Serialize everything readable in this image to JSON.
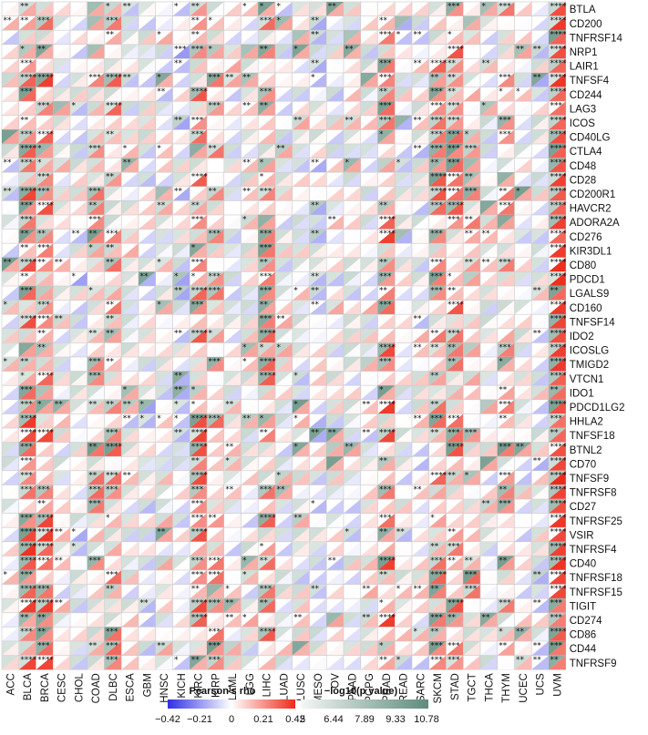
{
  "chart_data": {
    "type": "heatmap",
    "cancers": [
      "ACC",
      "BLCA",
      "BRCA",
      "CESC",
      "CHOL",
      "COAD",
      "DLBC",
      "ESCA",
      "GBM",
      "HNSC",
      "KICH",
      "KIRC",
      "KIRP",
      "LAML",
      "LGG",
      "LIHC",
      "LUAD",
      "LUSC",
      "MESO",
      "OV",
      "PAAD",
      "PCPG",
      "PRAD",
      "READ",
      "SARC",
      "SKCM",
      "STAD",
      "TGCT",
      "THCA",
      "THYM",
      "UCEC",
      "UCS",
      "UVM"
    ],
    "genes": [
      "BTLA",
      "CD200",
      "TNFRSF14",
      "NRP1",
      "LAIR1",
      "TNFSF4",
      "CD244",
      "LAG3",
      "ICOS",
      "CD40LG",
      "CTLA4",
      "CD48",
      "CD28",
      "CD200R1",
      "HAVCR2",
      "ADORA2A",
      "CD276",
      "KIR3DL1",
      "CD80",
      "PDCD1",
      "LGALS9",
      "CD160",
      "TNFSF14",
      "IDO2",
      "ICOSLG",
      "TMIGD2",
      "VTCN1",
      "IDO1",
      "PDCD1LG2",
      "HHLA2",
      "TNFSF18",
      "BTNL2",
      "CD70",
      "TNFSF9",
      "TNFRSF8",
      "CD27",
      "TNFRSF25",
      "VSIR",
      "TNFRSF4",
      "CD40",
      "TNFRSF18",
      "TNFRSF15",
      "TIGIT",
      "CD274",
      "CD86",
      "CD44",
      "TNFRSF9"
    ],
    "significance_marks": [
      "*",
      "**",
      "***",
      "****"
    ],
    "legend": {
      "rho_title": "Pearson's rho",
      "rho_range": [
        -0.42,
        0.42
      ],
      "rho_ticks": [
        "−0.42",
        "−0.21",
        "0",
        "0.21",
        "0.42"
      ],
      "rho_colors": [
        "#2f2fe6",
        "#ffffff",
        "#ee2a1a"
      ],
      "p_title": "−log10(p value)",
      "p_range": [
        5,
        10.78
      ],
      "p_ticks": [
        "5",
        "6.44",
        "7.89",
        "9.33",
        "10.78"
      ],
      "p_colors": [
        "#f5f7f5",
        "#5e8c7c"
      ]
    }
  }
}
